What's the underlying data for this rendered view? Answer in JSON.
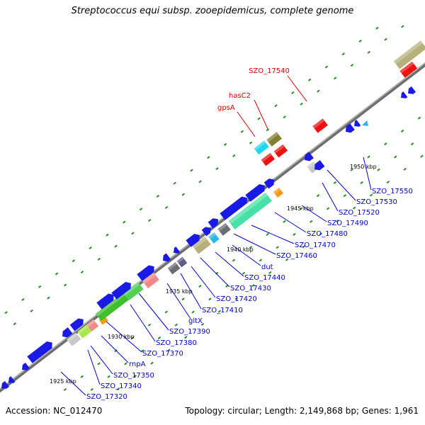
{
  "title": "Streptococcus equi subsp. zooepidemicus, complete genome",
  "footer": {
    "accession": "Accession: NC_012470",
    "summary": "Topology: circular; Length: 2,149,868 bp; Genes: 1,961"
  },
  "colors": {
    "backbone": "#6e6e6e",
    "gene_blue": "#1a1ae6",
    "gene_red": "#ee1111",
    "label_blue": "#0000cc",
    "label_red": "#dd0000",
    "dots": "#1f8f1f"
  },
  "ticks": [
    "1925 kbp",
    "1930 kbp",
    "1935 kbp",
    "1940 kbp",
    "1945 kbp",
    "1950 kbp"
  ],
  "labels": [
    {
      "text": "SZO_17540",
      "color": "red"
    },
    {
      "text": "hasC2",
      "color": "red"
    },
    {
      "text": "gpsA",
      "color": "red"
    },
    {
      "text": "SZO_17550",
      "color": "blue"
    },
    {
      "text": "SZO_17530",
      "color": "blue"
    },
    {
      "text": "SZO_17520",
      "color": "blue"
    },
    {
      "text": "SZO_17490",
      "color": "blue"
    },
    {
      "text": "SZO_17480",
      "color": "blue"
    },
    {
      "text": "SZO_17470",
      "color": "blue"
    },
    {
      "text": "SZO_17460",
      "color": "blue"
    },
    {
      "text": "dut",
      "color": "blue"
    },
    {
      "text": "SZO_17440",
      "color": "blue"
    },
    {
      "text": "SZO_17430",
      "color": "blue"
    },
    {
      "text": "SZO_17420",
      "color": "blue"
    },
    {
      "text": "SZO_17410",
      "color": "blue"
    },
    {
      "text": "gltX",
      "color": "blue"
    },
    {
      "text": "SZO_17390",
      "color": "blue"
    },
    {
      "text": "SZO_17380",
      "color": "blue"
    },
    {
      "text": "SZO_17370",
      "color": "blue"
    },
    {
      "text": "rnpA",
      "color": "blue"
    },
    {
      "text": "SZO_17350",
      "color": "blue"
    },
    {
      "text": "SZO_17340",
      "color": "blue"
    },
    {
      "text": "SZO_17320",
      "color": "blue"
    }
  ]
}
